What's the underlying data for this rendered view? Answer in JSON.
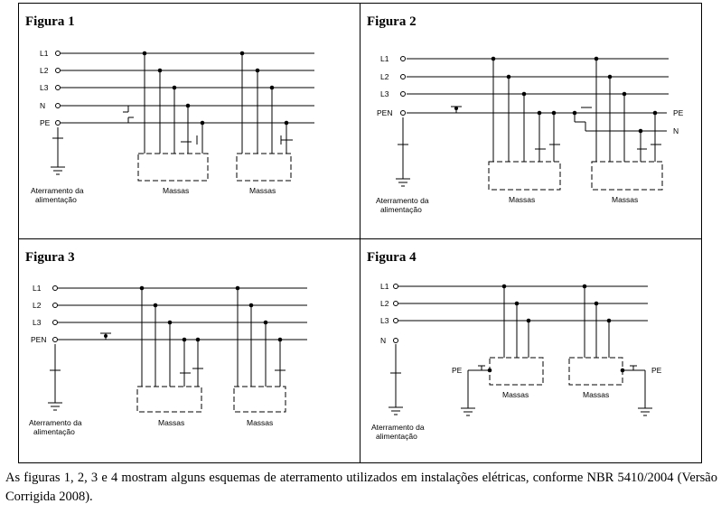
{
  "figures": [
    {
      "title": "Figura 1",
      "phases": [
        "L1",
        "L2",
        "L3"
      ],
      "neutral_label": "N",
      "pe_label": "PE",
      "ground_label_line1": "Aterramento da",
      "ground_label_line2": "alimentação",
      "mass_label_1": "Massas",
      "mass_label_2": "Massas"
    },
    {
      "title": "Figura 2",
      "phases": [
        "L1",
        "L2",
        "L3"
      ],
      "pen_label": "PEN",
      "pe_out_label": "PE",
      "n_out_label": "N",
      "ground_label_line1": "Aterramento da",
      "ground_label_line2": "alimentação",
      "mass_label_1": "Massas",
      "mass_label_2": "Massas"
    },
    {
      "title": "Figura 3",
      "phases": [
        "L1",
        "L2",
        "L3"
      ],
      "pen_label": "PEN",
      "ground_label_line1": "Aterramento da",
      "ground_label_line2": "alimentação",
      "mass_label_1": "Massas",
      "mass_label_2": "Massas"
    },
    {
      "title": "Figura 4",
      "phases": [
        "L1",
        "L2",
        "L3"
      ],
      "neutral_label": "N",
      "pe_label_1": "PE",
      "pe_label_2": "PE",
      "ground_label_line1": "Aterramento da",
      "ground_label_line2": "alimentação",
      "mass_label_1": "Massas",
      "mass_label_2": "Massas"
    }
  ],
  "caption": "As figuras 1, 2, 3 e 4 mostram alguns esquemas de aterramento utilizados em instalações elétricas, conforme NBR 5410/2004 (Versão Corrigida 2008)."
}
